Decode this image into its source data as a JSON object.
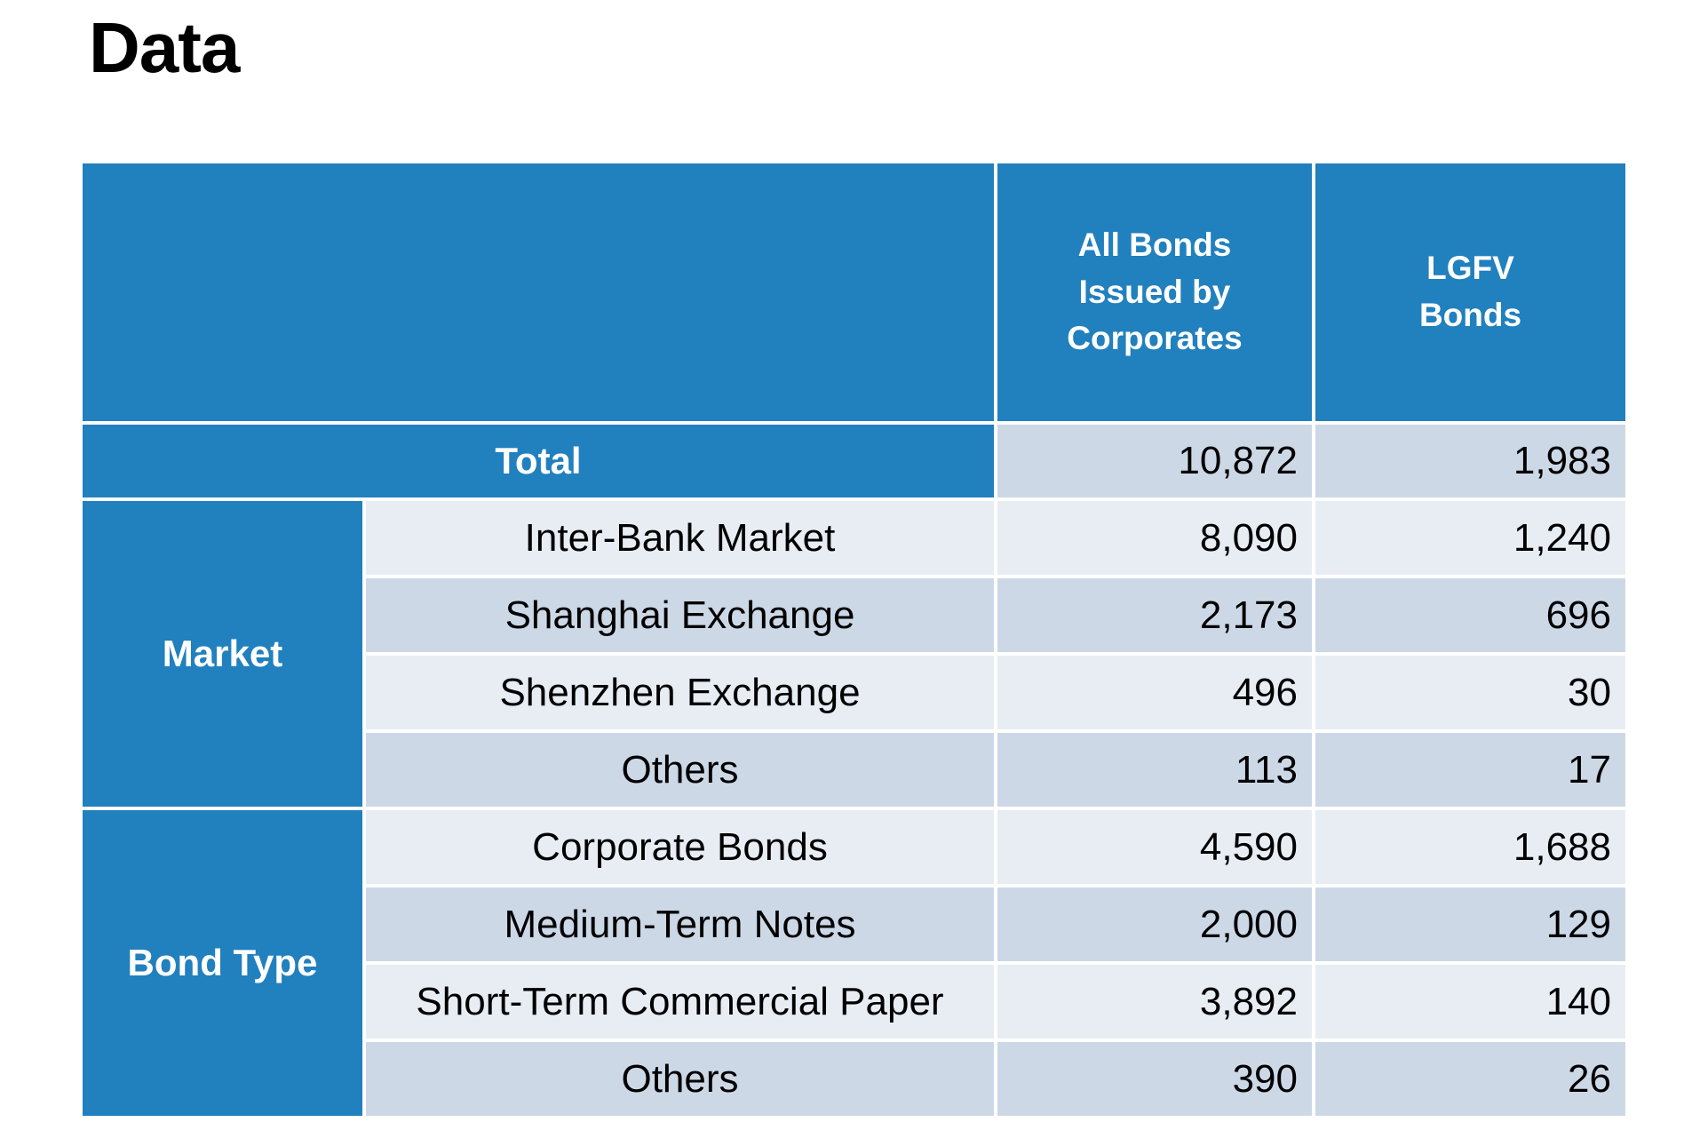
{
  "title": "Data",
  "colors": {
    "header_blue": "#2180BE",
    "row_light": "#E8EDF4",
    "row_dark": "#CDD8E7",
    "header_text": "#FFFFFF",
    "body_text": "#000000"
  },
  "table": {
    "columns": [
      {
        "name": "All Bonds Issued by Corporates",
        "lines": [
          "All Bonds",
          "Issued by",
          "Corporates"
        ]
      },
      {
        "name": "LGFV Bonds",
        "lines": [
          "LGFV",
          "Bonds"
        ]
      }
    ],
    "total": {
      "label": "Total",
      "all_bonds": "10,872",
      "lgfv": "1,983"
    },
    "groups": [
      {
        "label": "Market",
        "rows": [
          {
            "label": "Inter-Bank Market",
            "all_bonds": "8,090",
            "lgfv": "1,240"
          },
          {
            "label": "Shanghai Exchange",
            "all_bonds": "2,173",
            "lgfv": "696"
          },
          {
            "label": "Shenzhen Exchange",
            "all_bonds": "496",
            "lgfv": "30"
          },
          {
            "label": "Others",
            "all_bonds": "113",
            "lgfv": "17"
          }
        ]
      },
      {
        "label": "Bond Type",
        "rows": [
          {
            "label": "Corporate Bonds",
            "all_bonds": "4,590",
            "lgfv": "1,688"
          },
          {
            "label": "Medium-Term Notes",
            "all_bonds": "2,000",
            "lgfv": "129"
          },
          {
            "label": "Short-Term Commercial Paper",
            "all_bonds": "3,892",
            "lgfv": "140"
          },
          {
            "label": "Others",
            "all_bonds": "390",
            "lgfv": "26"
          }
        ]
      }
    ]
  }
}
